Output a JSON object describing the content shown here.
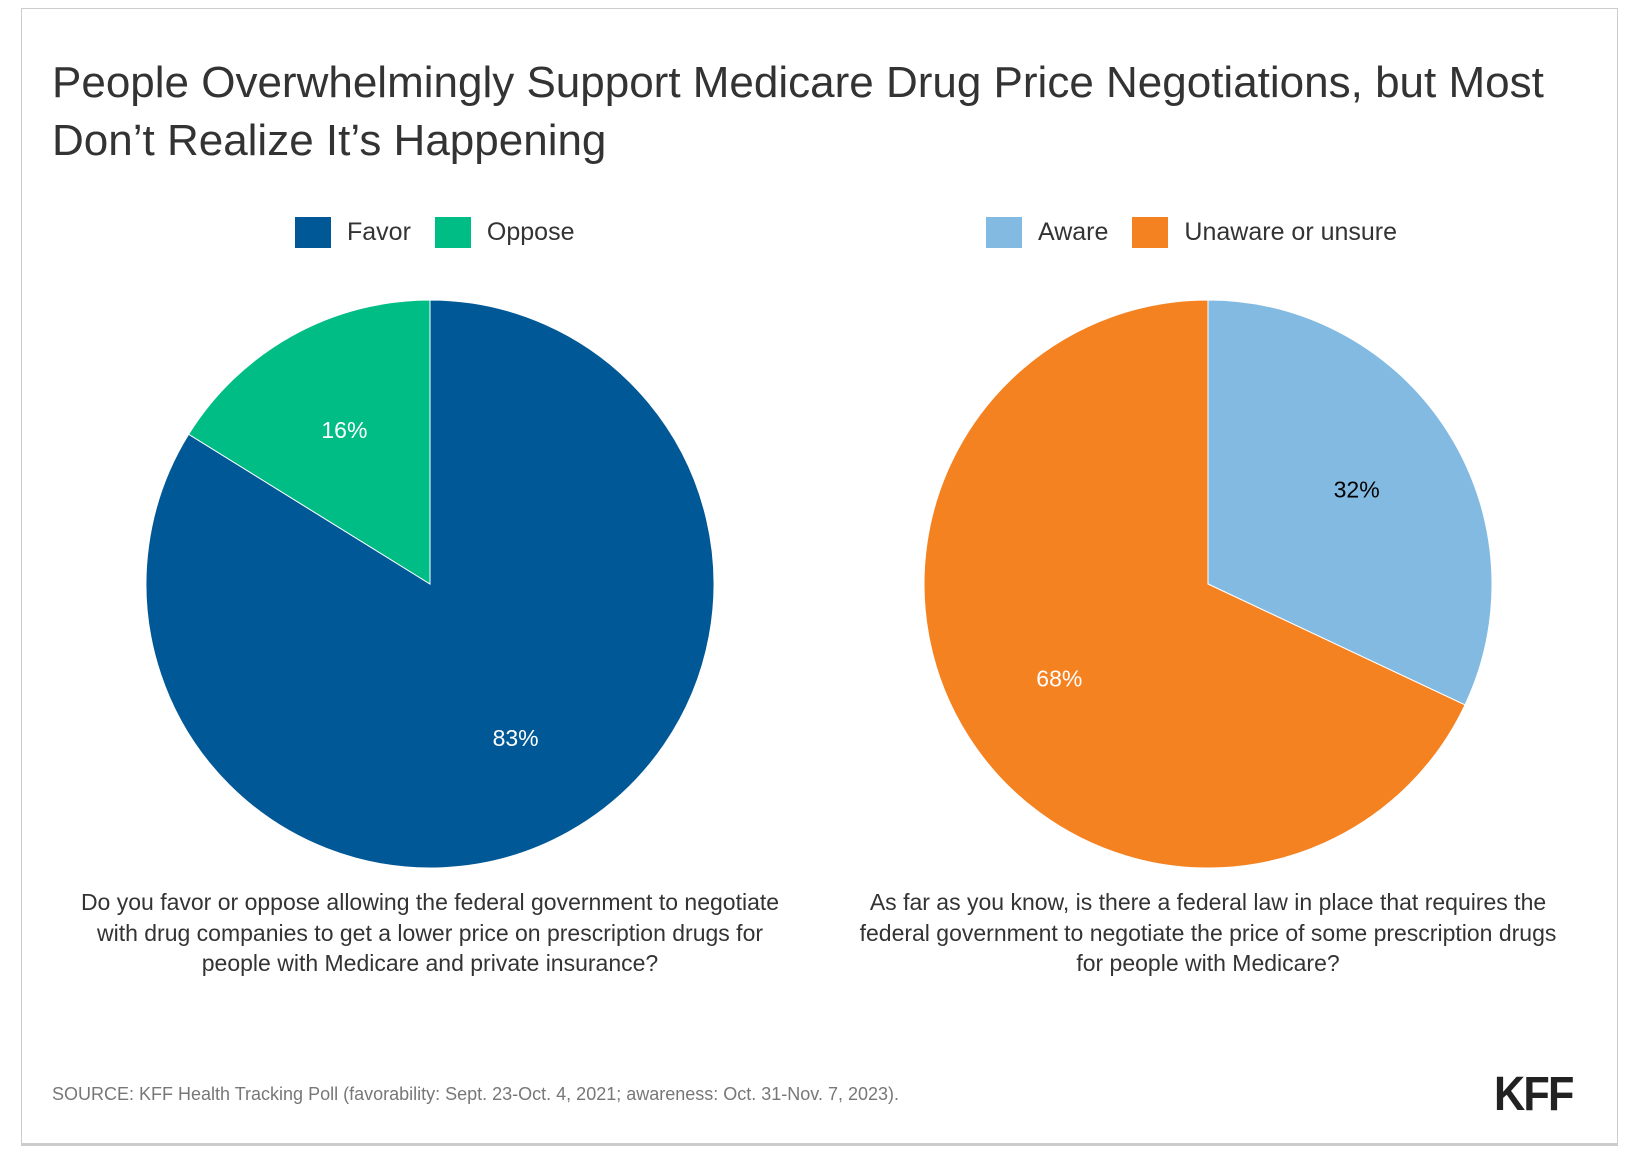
{
  "chart_data": [
    {
      "type": "pie",
      "legend_placement": "top",
      "categories": [
        "Favor",
        "Oppose"
      ],
      "values": [
        83,
        16
      ],
      "colors": [
        "#005897",
        "#00bd85"
      ],
      "label_colors": [
        "#ffffff",
        "#ffffff"
      ],
      "labels": [
        "83%",
        "16%"
      ],
      "caption": "Do you favor or oppose allowing the federal government to negotiate with drug companies to get a lower price on prescription drugs for people with Medicare and private insurance?"
    },
    {
      "type": "pie",
      "legend_placement": "top",
      "categories": [
        "Aware",
        "Unaware or unsure"
      ],
      "values": [
        32,
        68
      ],
      "colors": [
        "#82bae2",
        "#f58220"
      ],
      "label_colors": [
        "#000000",
        "#ffffff"
      ],
      "labels": [
        "32%",
        "68%"
      ],
      "caption": "As far as you know, is there a federal law in place that requires the federal government to negotiate the price of some prescription drugs for people with Medicare?"
    }
  ],
  "title": "People Overwhelmingly Support Medicare Drug Price Negotiations, but Most Don’t Realize It’s Happening",
  "source": "SOURCE: KFF Health Tracking Poll (favorability: Sept. 23-Oct. 4, 2021; awareness: Oct. 31-Nov. 7, 2023).",
  "logo": "KFF"
}
